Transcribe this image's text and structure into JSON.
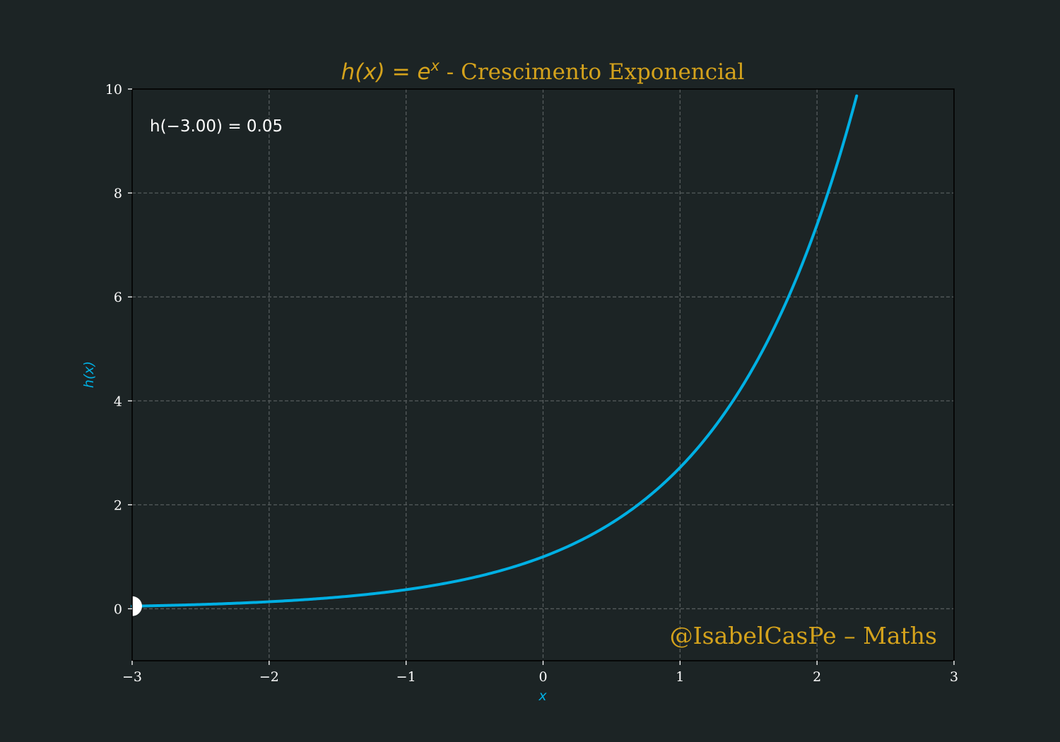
{
  "colors": {
    "background": "#1c2425",
    "curve": "#00b0e4",
    "title": "#d4a21c",
    "watermark": "#d4a21c",
    "axis_label": "#00b0e4",
    "marker": "#ffffff",
    "grid": "#555b5c",
    "text": "#ffffff"
  },
  "chart_data": {
    "type": "line",
    "function": "e^x",
    "title_math_lhs": "h(x) = e",
    "title_math_sup": "x",
    "title_text": " - Crescimento Exponencial",
    "xlabel": "x",
    "ylabel": "h(x)",
    "xlim": [
      -3,
      3
    ],
    "ylim": [
      -1,
      10
    ],
    "xticks": [
      -3,
      -2,
      -1,
      0,
      1,
      2,
      3
    ],
    "xtick_labels": [
      "−3",
      "−2",
      "−1",
      "0",
      "1",
      "2",
      "3"
    ],
    "yticks": [
      0,
      2,
      4,
      6,
      8,
      10
    ],
    "ytick_labels": [
      "0",
      "2",
      "4",
      "6",
      "8",
      "10"
    ],
    "grid": true,
    "series": [
      {
        "x": [
          -3.0,
          -2.5,
          -2.0,
          -1.5,
          -1.0,
          -0.5,
          0.0,
          0.25,
          0.5,
          0.75,
          1.0,
          1.25,
          1.5,
          1.75,
          2.0,
          2.1,
          2.2,
          2.3026
        ],
        "y": [
          0.0498,
          0.0821,
          0.1353,
          0.2231,
          0.3679,
          0.6065,
          1.0,
          1.284,
          1.6487,
          2.117,
          2.7183,
          3.4903,
          4.4817,
          5.7546,
          7.3891,
          8.1662,
          9.025,
          10.0
        ]
      }
    ],
    "marker_point": {
      "x": -3.0,
      "y": 0.05
    },
    "annotation": "h(−3.00) = 0.05",
    "watermark": "@IsabelCasPe – Maths"
  }
}
